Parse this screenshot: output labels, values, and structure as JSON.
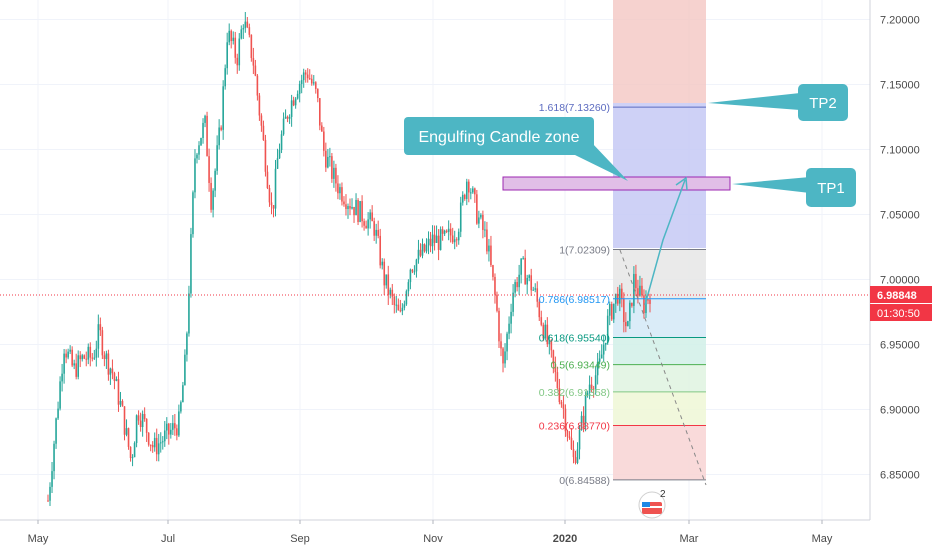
{
  "chart_data": {
    "type": "candlestick",
    "x_labels": [
      "May",
      "Jul",
      "Sep",
      "Nov",
      "2020",
      "Mar",
      "May"
    ],
    "y_ticks": [
      "7.20000",
      "7.15000",
      "7.10000",
      "7.05000",
      "7.00000",
      "6.95000",
      "6.90000",
      "6.85000"
    ],
    "ylim": [
      6.815,
      7.215
    ],
    "last_price": "6.98848",
    "countdown": "01:30:50",
    "price_path": [
      [
        0,
        6.83
      ],
      [
        0.05,
        6.95
      ],
      [
        0.08,
        6.93
      ],
      [
        0.11,
        6.94
      ],
      [
        0.14,
        6.94
      ],
      [
        0.16,
        6.96
      ],
      [
        0.18,
        6.94
      ],
      [
        0.2,
        6.93
      ],
      [
        0.23,
        6.9
      ],
      [
        0.26,
        6.86
      ],
      [
        0.28,
        6.9
      ],
      [
        0.3,
        6.89
      ],
      [
        0.33,
        6.87
      ],
      [
        0.37,
        6.88
      ],
      [
        0.41,
        6.89
      ],
      [
        0.43,
        6.94
      ],
      [
        0.46,
        7.1
      ],
      [
        0.49,
        7.12
      ],
      [
        0.51,
        7.06
      ],
      [
        0.54,
        7.12
      ],
      [
        0.56,
        7.19
      ],
      [
        0.59,
        7.17
      ],
      [
        0.61,
        7.2
      ],
      [
        0.64,
        7.17
      ],
      [
        0.67,
        7.11
      ],
      [
        0.7,
        7.05
      ],
      [
        0.72,
        7.1
      ],
      [
        0.75,
        7.13
      ],
      [
        0.78,
        7.15
      ],
      [
        0.81,
        7.16
      ],
      [
        0.84,
        7.14
      ],
      [
        0.86,
        7.1
      ],
      [
        0.89,
        7.08
      ],
      [
        0.91,
        7.07
      ],
      [
        0.94,
        7.06
      ],
      [
        0.98,
        7.05
      ],
      [
        1.02,
        7.04
      ],
      [
        1.05,
        7.0
      ],
      [
        1.08,
        6.98
      ],
      [
        1.1,
        6.97
      ],
      [
        1.13,
        7.01
      ],
      [
        1.17,
        7.02
      ],
      [
        1.2,
        7.03
      ],
      [
        1.24,
        7.03
      ],
      [
        1.28,
        7.04
      ],
      [
        1.31,
        7.08
      ],
      [
        1.34,
        7.05
      ],
      [
        1.37,
        7.03
      ],
      [
        1.4,
        6.98
      ],
      [
        1.42,
        6.93
      ],
      [
        1.45,
        6.99
      ],
      [
        1.48,
        7.01
      ],
      [
        1.52,
        6.99
      ],
      [
        1.55,
        6.96
      ],
      [
        1.58,
        6.93
      ],
      [
        1.61,
        6.9
      ],
      [
        1.64,
        6.86
      ],
      [
        1.66,
        6.88
      ],
      [
        1.69,
        6.92
      ],
      [
        1.72,
        6.93
      ],
      [
        1.75,
        6.97
      ],
      [
        1.78,
        6.99
      ],
      [
        1.81,
        6.96
      ],
      [
        1.83,
        7.0
      ],
      [
        1.86,
        6.98
      ],
      [
        1.88,
        6.99
      ]
    ],
    "fib_levels": [
      {
        "label": "1(7.02309)",
        "price": 7.02309,
        "color": "#787b86"
      },
      {
        "label": "0.786(6.98517)",
        "price": 6.98517,
        "color": "#2196f3"
      },
      {
        "label": "0.618(6.95540)",
        "price": 6.9554,
        "color": "#089981"
      },
      {
        "label": "0.5(6.93449)",
        "price": 6.93449,
        "color": "#4caf50"
      },
      {
        "label": "0.382(6.91358)",
        "price": 6.91358,
        "color": "#81c784"
      },
      {
        "label": "0.236(6.88770)",
        "price": 6.8877,
        "color": "#f23645"
      },
      {
        "label": "0(6.84588)",
        "price": 6.84588,
        "color": "#787b86"
      },
      {
        "label": "1.618(7.13260)",
        "price": 7.1326,
        "color": "#5c6bc0"
      }
    ],
    "zone": {
      "top": 7.076,
      "bottom": 7.066
    },
    "annotations": {
      "zone_label": "Engulfing Candle zone",
      "tp1": "TP1",
      "tp2": "TP2",
      "badge": "2"
    }
  },
  "colors": {
    "up": "#26a69a",
    "down": "#ef5350",
    "price_line": "#f23645",
    "callout": "#4db6c4"
  }
}
